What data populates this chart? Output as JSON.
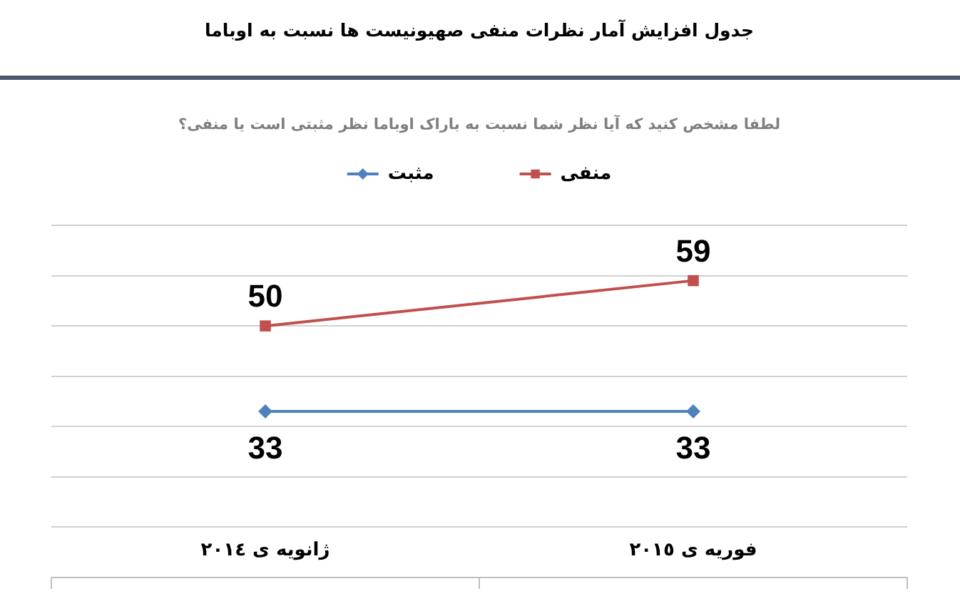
{
  "chart_data": {
    "type": "line",
    "title": "جدول افزایش آمار نظرات منفی صهیونیست ها نسبت به اوباما",
    "subtitle": "لطفا مشخص کنید که آیا نظر شما نسبت به باراک اوباما نظر مثبتی است یا منفی؟",
    "categories": [
      "ژانویه ی ٢٠١٤",
      "فوریه ی ٢٠١٥"
    ],
    "series": [
      {
        "name": "مثبت",
        "color": "#4f81bd",
        "values": [
          33,
          33
        ],
        "marker": "diamond"
      },
      {
        "name": "منفی",
        "color": "#c0504d",
        "values": [
          50,
          59
        ],
        "marker": "square"
      }
    ],
    "ylim": [
      0,
      70
    ],
    "yticks": [
      {
        "value": 0,
        "label": null
      },
      {
        "value": 10,
        "label": null
      },
      {
        "value": 20,
        "label": null
      },
      {
        "value": 30,
        "label": null
      },
      {
        "value": 40,
        "label": null
      },
      {
        "value": 50,
        "label": null
      },
      {
        "value": 60,
        "label": null
      },
      {
        "value": 70,
        "label": null
      }
    ],
    "grid": "y",
    "legend": "top",
    "tick_labels": "x",
    "data_labels": true
  }
}
